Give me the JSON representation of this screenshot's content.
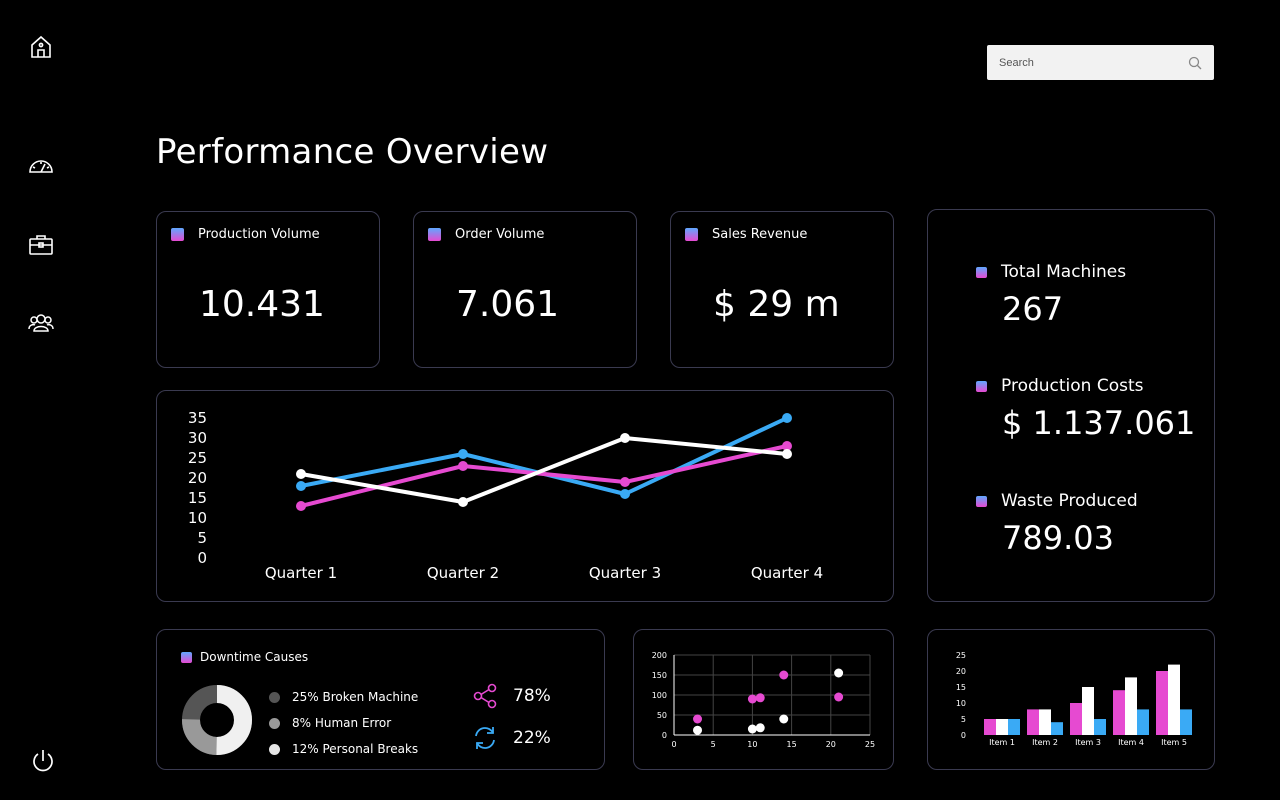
{
  "sidebar": {
    "icons": [
      "home-icon",
      "gauge-icon",
      "briefcase-icon",
      "users-icon",
      "power-icon"
    ]
  },
  "search": {
    "placeholder": "Search",
    "value": ""
  },
  "page": {
    "title": "Performance Overview"
  },
  "kpis": [
    {
      "label": "Production Volume",
      "value": "10.431"
    },
    {
      "label": "Order Volume",
      "value": "7.061"
    },
    {
      "label": "Sales Revenue",
      "value": "$ 29 m"
    }
  ],
  "stats": [
    {
      "label": "Total Machines",
      "value": "267"
    },
    {
      "label": "Production Costs",
      "value": "$ 1.137.061"
    },
    {
      "label": "Waste Produced",
      "value": "789.03"
    }
  ],
  "downtime": {
    "title": "Downtime Causes",
    "items": [
      {
        "label": "25% Broken Machine",
        "color": "#555555"
      },
      {
        "label": "8% Human Error",
        "color": "#999999"
      },
      {
        "label": "12% Personal Breaks",
        "color": "#e6e6e6"
      }
    ],
    "metrics": [
      {
        "icon": "share-icon",
        "value": "78%",
        "color": "#e64ad1"
      },
      {
        "icon": "refresh-icon",
        "value": "22%",
        "color": "#3aaaf5"
      }
    ]
  },
  "colors": {
    "blue": "#3aaaf5",
    "pink": "#e64ad1",
    "white": "#ffffff",
    "border": "#3a3a50"
  },
  "chart_data": [
    {
      "type": "line",
      "categories": [
        "Quarter 1",
        "Quarter 2",
        "Quarter 3",
        "Quarter 4"
      ],
      "yticks": [
        0,
        5,
        10,
        15,
        20,
        25,
        30,
        35
      ],
      "ylim": [
        0,
        35
      ],
      "series": [
        {
          "values": [
            18,
            26,
            16,
            35
          ],
          "color": "#3aaaf5"
        },
        {
          "values": [
            13,
            23,
            19,
            28
          ],
          "color": "#e64ad1"
        },
        {
          "values": [
            21,
            14,
            30,
            26
          ],
          "color": "#ffffff"
        }
      ],
      "grid": false
    },
    {
      "type": "scatter",
      "xlim": [
        0,
        25
      ],
      "ylim": [
        0,
        200
      ],
      "xticks": [
        0,
        5,
        10,
        15,
        20,
        25
      ],
      "yticks": [
        0,
        50,
        100,
        150,
        200
      ],
      "grid": true,
      "series": [
        {
          "color": "#e64ad1",
          "points": [
            [
              3,
              40
            ],
            [
              10,
              90
            ],
            [
              11,
              93
            ],
            [
              14,
              150
            ],
            [
              21,
              95
            ]
          ]
        },
        {
          "color": "#ffffff",
          "points": [
            [
              3,
              12
            ],
            [
              10,
              15
            ],
            [
              11,
              18
            ],
            [
              14,
              40
            ],
            [
              21,
              155
            ]
          ]
        }
      ]
    },
    {
      "type": "bar",
      "categories": [
        "Item 1",
        "Item 2",
        "Item 3",
        "Item 4",
        "Item 5"
      ],
      "ylim": [
        0,
        25
      ],
      "yticks": [
        0,
        5,
        10,
        15,
        20,
        25
      ],
      "series": [
        {
          "values": [
            5,
            8,
            15,
            18,
            22
          ],
          "color": "#ffffff"
        },
        {
          "values": [
            5,
            8,
            10,
            14,
            20
          ],
          "color": "#e64ad1"
        },
        {
          "values": [
            5,
            4,
            5,
            8,
            8
          ],
          "color": "#3aaaf5"
        }
      ],
      "legend_order": [
        "pink",
        "white",
        "blue"
      ]
    }
  ]
}
